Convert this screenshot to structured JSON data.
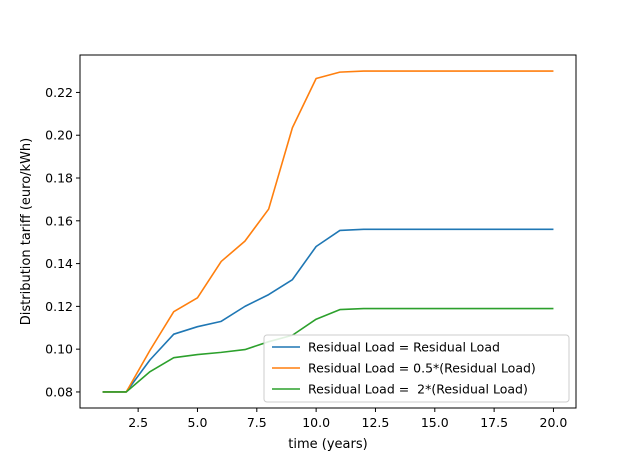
{
  "chart_data": {
    "type": "line",
    "title": "",
    "xlabel": "time (years)",
    "ylabel": "Distribution tariff (euro/kWh)",
    "xlim": [
      0.05,
      20.95
    ],
    "ylim": [
      0.0725,
      0.2375
    ],
    "xticks": [
      2.5,
      5.0,
      7.5,
      10.0,
      12.5,
      15.0,
      17.5,
      20.0
    ],
    "xtick_labels": [
      "2.5",
      "5.0",
      "7.5",
      "10.0",
      "12.5",
      "15.0",
      "17.5",
      "20.0"
    ],
    "yticks": [
      0.08,
      0.1,
      0.12,
      0.14,
      0.16,
      0.18,
      0.2,
      0.22
    ],
    "ytick_labels": [
      "0.08",
      "0.10",
      "0.12",
      "0.14",
      "0.16",
      "0.18",
      "0.20",
      "0.22"
    ],
    "grid": false,
    "legend_position": "lower-right",
    "x": [
      1,
      2,
      3,
      4,
      5,
      6,
      7,
      8,
      9,
      10,
      11,
      12,
      13,
      14,
      15,
      16,
      17,
      18,
      19,
      20
    ],
    "series": [
      {
        "name": "Residual Load = Residual Load",
        "color": "#1f77b4",
        "values": [
          0.08,
          0.08,
          0.095,
          0.107,
          0.1105,
          0.113,
          0.12,
          0.1255,
          0.1325,
          0.148,
          0.1555,
          0.156,
          0.156,
          0.156,
          0.156,
          0.156,
          0.156,
          0.156,
          0.156,
          0.156
        ]
      },
      {
        "name": "Residual Load = 0.5*(Residual Load)",
        "color": "#ff7f0e",
        "values": [
          0.08,
          0.08,
          0.0995,
          0.1175,
          0.124,
          0.141,
          0.1505,
          0.1655,
          0.2035,
          0.2265,
          0.2295,
          0.23,
          0.23,
          0.23,
          0.23,
          0.23,
          0.23,
          0.23,
          0.23,
          0.23
        ]
      },
      {
        "name": "Residual Load =  2*(Residual Load)",
        "color": "#2ca02c",
        "values": [
          0.08,
          0.08,
          0.0895,
          0.096,
          0.0975,
          0.0985,
          0.0998,
          0.1035,
          0.1065,
          0.114,
          0.1185,
          0.119,
          0.119,
          0.119,
          0.119,
          0.119,
          0.119,
          0.119,
          0.119,
          0.119
        ]
      }
    ]
  }
}
